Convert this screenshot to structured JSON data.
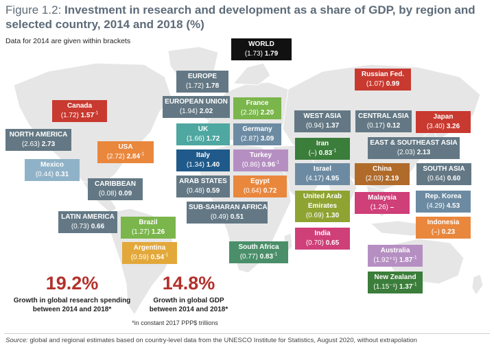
{
  "title": {
    "prefix": "Figure 1.2:",
    "main": "Investment in research and development as a share of GDP, by region and selected country, 2014 and 2018 (%)"
  },
  "subtitle": "Data for 2014 are given within brackets",
  "colors": {
    "map": "#e6e6e6",
    "world": "#111111",
    "region": "#637884",
    "red": "#c8392f",
    "orange": "#e9873d",
    "lightblue": "#8fb2c8",
    "teal": "#4ea7a0",
    "darkblue": "#1f5a8a",
    "lavender": "#b68fc2",
    "green": "#7ab64b",
    "darkgreen": "#3b7d3a",
    "lime": "#8ea331",
    "gold": "#e3a83a",
    "magenta": "#cf3f78",
    "brown": "#b06b2a",
    "steel": "#6c8ba3",
    "seagreen": "#4a8f6a",
    "accent": "#b4302a"
  },
  "boxes": [
    {
      "id": "world",
      "name": "WORLD",
      "v2014": "(1.73)",
      "v2018": "1.79",
      "sup": "",
      "color": "world"
    },
    {
      "id": "europe",
      "name": "EUROPE",
      "v2014": "(1.72)",
      "v2018": "1.78",
      "sup": "",
      "color": "region"
    },
    {
      "id": "russian-fed",
      "name": "Russian Fed.",
      "v2014": "(1.07)",
      "v2018": "0.99",
      "sup": "",
      "color": "red"
    },
    {
      "id": "european-union",
      "name": "EUROPEAN UNION",
      "v2014": "(1.94)",
      "v2018": "2.02",
      "sup": "",
      "color": "region"
    },
    {
      "id": "france",
      "name": "France",
      "v2014": "(2.28)",
      "v2018": "2.20",
      "sup": "",
      "color": "green"
    },
    {
      "id": "canada",
      "name": "Canada",
      "v2014": "(1.72)",
      "v2018": "1.57",
      "sup": "-1",
      "color": "red"
    },
    {
      "id": "west-asia",
      "name": "WEST ASIA",
      "v2014": "(0.94)",
      "v2018": "1.37",
      "sup": "",
      "color": "region"
    },
    {
      "id": "central-asia",
      "name": "CENTRAL ASIA",
      "v2014": "(0.17)",
      "v2018": "0.12",
      "sup": "",
      "color": "region"
    },
    {
      "id": "japan",
      "name": "Japan",
      "v2014": "(3.40)",
      "v2018": "3.26",
      "sup": "",
      "color": "red"
    },
    {
      "id": "uk",
      "name": "UK",
      "v2014": "(1.66)",
      "v2018": "1.72",
      "sup": "",
      "color": "teal"
    },
    {
      "id": "germany",
      "name": "Germany",
      "v2014": "(2.87)",
      "v2018": "3.09",
      "sup": "",
      "color": "steel"
    },
    {
      "id": "north-america",
      "name": "NORTH AMERICA",
      "v2014": "(2.63)",
      "v2018": "2.73",
      "sup": "",
      "color": "region"
    },
    {
      "id": "iran",
      "name": "Iran",
      "v2014": "(–)",
      "v2018": "0.83",
      "sup": "-1",
      "color": "darkgreen"
    },
    {
      "id": "east-se-asia",
      "name": "EAST & SOUTHEAST ASIA",
      "v2014": "(2.03)",
      "v2018": "2.13",
      "sup": "",
      "color": "region"
    },
    {
      "id": "usa",
      "name": "USA",
      "v2014": "(2.72)",
      "v2018": "2.84",
      "sup": "-1",
      "color": "orange"
    },
    {
      "id": "italy",
      "name": "Italy",
      "v2014": "(1.34)",
      "v2018": "1.40",
      "sup": "",
      "color": "darkblue"
    },
    {
      "id": "turkey",
      "name": "Turkey",
      "v2014": "(0.86)",
      "v2018": "0.96",
      "sup": "-1",
      "color": "lavender"
    },
    {
      "id": "mexico",
      "name": "Mexico",
      "v2014": "(0.44)",
      "v2018": "0.31",
      "sup": "",
      "color": "lightblue"
    },
    {
      "id": "israel",
      "name": "Israel",
      "v2014": "(4.17)",
      "v2018": "4.95",
      "sup": "",
      "color": "steel"
    },
    {
      "id": "china",
      "name": "China",
      "v2014": "(2.03)",
      "v2018": "2.19",
      "sup": "",
      "color": "brown"
    },
    {
      "id": "south-asia",
      "name": "SOUTH ASIA",
      "v2014": "(0.64)",
      "v2018": "0.60",
      "sup": "",
      "color": "region"
    },
    {
      "id": "arab-states",
      "name": "ARAB STATES",
      "v2014": "(0.48)",
      "v2018": "0.59",
      "sup": "",
      "color": "region"
    },
    {
      "id": "egypt",
      "name": "Egypt",
      "v2014": "(0.64)",
      "v2018": "0.72",
      "sup": "",
      "color": "orange"
    },
    {
      "id": "caribbean",
      "name": "CARIBBEAN",
      "v2014": "(0.08)",
      "v2018": "0.09",
      "sup": "",
      "color": "region"
    },
    {
      "id": "uae",
      "name": "United Arab Emirates",
      "v2014": "(0.69)",
      "v2018": "1.30",
      "sup": "",
      "color": "lime"
    },
    {
      "id": "malaysia",
      "name": "Malaysia",
      "v2014": "(1.26)",
      "v2018": "–",
      "sup": "",
      "color": "magenta"
    },
    {
      "id": "rep-korea",
      "name": "Rep. Korea",
      "v2014": "(4.29)",
      "v2018": "4.53",
      "sup": "",
      "color": "steel"
    },
    {
      "id": "sub-saharan-africa",
      "name": "SUB-SAHARAN AFRICA",
      "v2014": "(0.49)",
      "v2018": "0.51",
      "sup": "",
      "color": "region"
    },
    {
      "id": "latin-america",
      "name": "LATIN AMERICA",
      "v2014": "(0.73)",
      "v2018": "0.66",
      "sup": "",
      "color": "region"
    },
    {
      "id": "brazil",
      "name": "Brazil",
      "v2014": "(1.27)",
      "v2018": "1.26",
      "sup": "",
      "color": "green"
    },
    {
      "id": "indonesia",
      "name": "Indonesia",
      "v2014": "(–)",
      "v2018": "0.23",
      "sup": "",
      "color": "orange"
    },
    {
      "id": "india",
      "name": "India",
      "v2014": "(0.70)",
      "v2018": "0.65",
      "sup": "",
      "color": "magenta"
    },
    {
      "id": "argentina",
      "name": "Argentina",
      "v2014": "(0.59)",
      "v2018": "0.54",
      "sup": "-1",
      "color": "gold"
    },
    {
      "id": "south-africa",
      "name": "South Africa",
      "v2014": "(0.77)",
      "v2018": "0.83",
      "sup": "-1",
      "color": "seagreen"
    },
    {
      "id": "australia",
      "name": "Australia",
      "v2014": "(1.92⁺¹)",
      "v2018": "1.87",
      "sup": "-1",
      "color": "lavender"
    },
    {
      "id": "new-zealand",
      "name": "New Zealand",
      "v2014": "(1.15⁻¹)",
      "v2018": "1.37",
      "sup": "-1",
      "color": "darkgreen"
    }
  ],
  "stats": [
    {
      "id": "research-spending",
      "value": "19.2%",
      "label": "Growth in global research spending between 2014 and 2018*"
    },
    {
      "id": "gdp",
      "value": "14.8%",
      "label": "Growth in global GDP between 2014 and 2018*"
    }
  ],
  "footnote": "*in constant 2017 PPP$ trillions",
  "source": {
    "label": "Source:",
    "text": "global and regional estimates based on country-level data from the UNESCO Institute for Statistics, August 2020, without extrapolation"
  }
}
